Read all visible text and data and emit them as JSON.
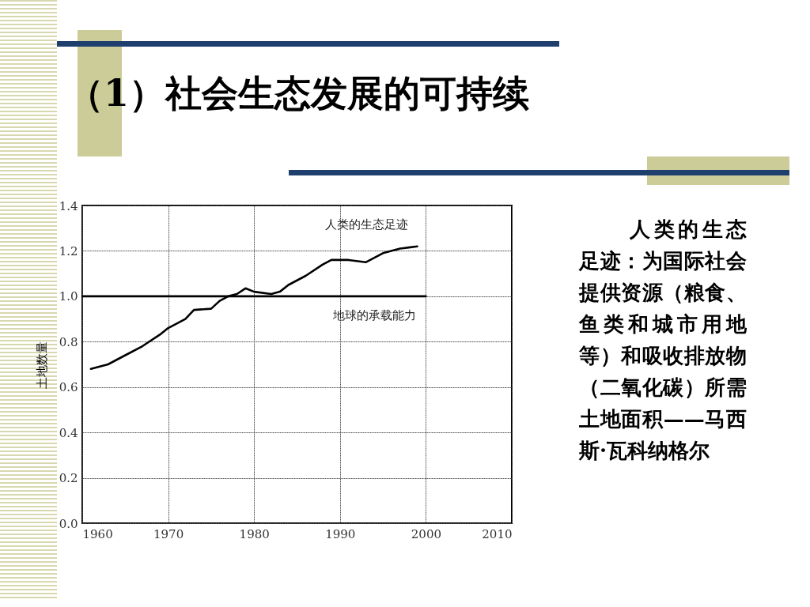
{
  "chart_data": {
    "type": "line",
    "title": "（1）社会生态发展的可持续",
    "ylabel": "土地数量",
    "series": [
      {
        "name": "人类的生态足迹",
        "color": "#000000",
        "x": [
          1961,
          1963,
          1965,
          1967,
          1969,
          1970,
          1972,
          1973,
          1975,
          1976,
          1977,
          1978,
          1979,
          1980,
          1982,
          1983,
          1984,
          1986,
          1988,
          1989,
          1991,
          1993,
          1995,
          1997,
          1998,
          1999
        ],
        "values": [
          0.68,
          0.7,
          0.74,
          0.78,
          0.83,
          0.86,
          0.9,
          0.94,
          0.945,
          0.98,
          1.0,
          1.01,
          1.035,
          1.02,
          1.01,
          1.02,
          1.05,
          1.09,
          1.14,
          1.16,
          1.16,
          1.15,
          1.19,
          1.21,
          1.215,
          1.22
        ]
      },
      {
        "name": "地球的承载能力",
        "color": "#000000",
        "x": [
          1960,
          2000
        ],
        "values": [
          1.0,
          1.0
        ]
      }
    ],
    "xlim": [
      1960,
      2010
    ],
    "xticks": [
      1960,
      1970,
      1980,
      1990,
      2000,
      2010
    ],
    "ylim": [
      0,
      1.4
    ],
    "yticks": [
      {
        "value": 0,
        "label": "0.0"
      },
      {
        "value": 0.2,
        "label": "0.2"
      },
      {
        "value": 0.4,
        "label": "0.4"
      },
      {
        "value": 0.6,
        "label": "0.6"
      },
      {
        "value": 0.8,
        "label": "0.8"
      },
      {
        "value": 1.0,
        "label": "1.0"
      },
      {
        "value": 1.2,
        "label": "1.2"
      },
      {
        "value": 1.4,
        "label": "1.4"
      }
    ],
    "grid": true,
    "legend": false,
    "line_style": "solid",
    "marker": "none",
    "annotations": [
      "人类的生态足迹：为国际社会提供资源（粮食、鱼类和城市用地等）和吸收排放物（二氧化碳）所需土地面积——马西斯·瓦科纳格尔"
    ]
  }
}
